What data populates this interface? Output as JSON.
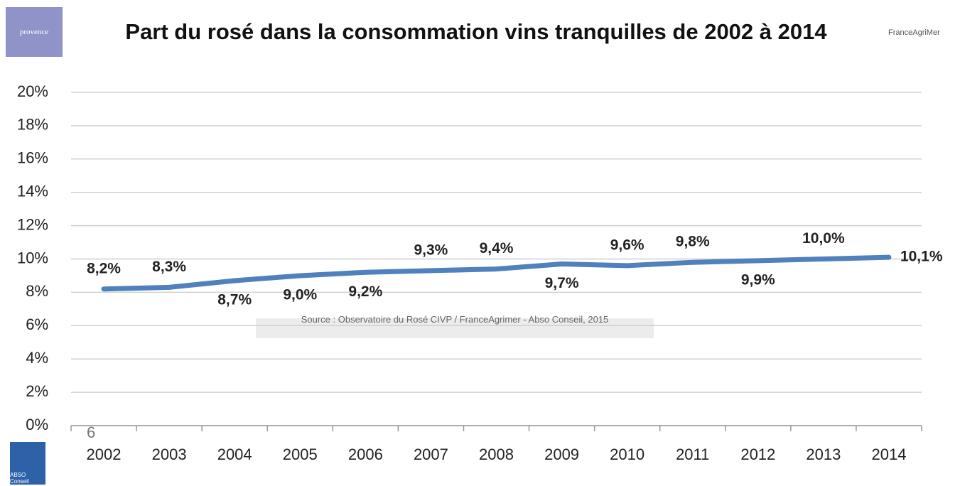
{
  "chart_data": {
    "type": "line",
    "title": "Part du rosé dans la consommation vins tranquilles de 2002 à 2014",
    "annotation": "Source : Observatoire du Rosé CIVP / FranceAgrimer - Abso Conseil, 2015",
    "page_number": "6",
    "logos": [
      "provence",
      "FranceAgriMer",
      "ABSO Conseil"
    ],
    "categories": [
      "2002",
      "2003",
      "2004",
      "2005",
      "2006",
      "2007",
      "2008",
      "2009",
      "2010",
      "2011",
      "2012",
      "2013",
      "2014"
    ],
    "values": [
      8.2,
      8.3,
      8.7,
      9.0,
      9.2,
      9.3,
      9.4,
      9.7,
      9.6,
      9.8,
      9.9,
      10.0,
      10.1
    ],
    "value_labels": [
      "8,2%",
      "8,3%",
      "8,7%",
      "9,0%",
      "9,2%",
      "9,3%",
      "9,4%",
      "9,7%",
      "9,6%",
      "9,8%",
      "9,9%",
      "10,0%",
      "10,1%"
    ],
    "color": "#4f81bd",
    "ylim": [
      0,
      20
    ],
    "yticks": [
      {
        "value": 0,
        "label": "0%"
      },
      {
        "value": 2,
        "label": "2%"
      },
      {
        "value": 4,
        "label": "4%"
      },
      {
        "value": 6,
        "label": "6%"
      },
      {
        "value": 8,
        "label": "8%"
      },
      {
        "value": 10,
        "label": "10%"
      },
      {
        "value": 12,
        "label": "12%"
      },
      {
        "value": 14,
        "label": "14%"
      },
      {
        "value": 16,
        "label": "16%"
      },
      {
        "value": 18,
        "label": "18%"
      },
      {
        "value": 20,
        "label": "20%"
      }
    ],
    "grid": true
  }
}
